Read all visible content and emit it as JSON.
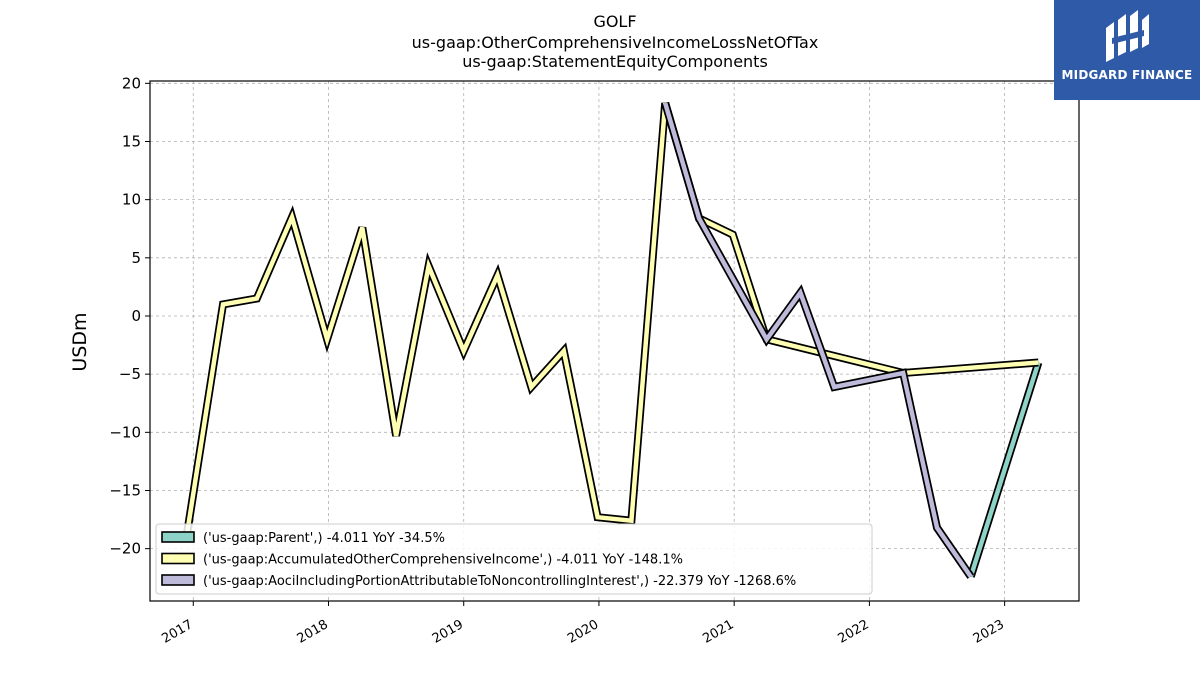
{
  "logo": {
    "text": "MIDGARD FINANCE"
  },
  "chart_data": {
    "type": "line",
    "title_lines": [
      "GOLF",
      "us-gaap:OtherComprehensiveIncomeLossNetOfTax",
      "us-gaap:StatementEquityComponents"
    ],
    "ylabel": "USDm",
    "xlabel": "",
    "ylim": [
      -24.5,
      20.2
    ],
    "xlim": [
      2016.68,
      2023.55
    ],
    "yticks": [
      20,
      15,
      10,
      5,
      0,
      -5,
      -10,
      -15,
      -20
    ],
    "ytick_labels": [
      "20",
      "15",
      "10",
      "5",
      "0",
      "−5",
      "−10",
      "−15",
      "−20"
    ],
    "xticks": [
      2017,
      2018,
      2019,
      2020,
      2021,
      2022,
      2023
    ],
    "xtick_labels": [
      "2017",
      "2018",
      "2019",
      "2020",
      "2021",
      "2022",
      "2023"
    ],
    "grid": true,
    "legend_position": "lower-left",
    "series": [
      {
        "name": "('us-gaap:Parent',) -4.011 YoY -34.5%",
        "color": "#8dd3c7",
        "points": [
          [
            2022.75,
            -22.4
          ],
          [
            2023.25,
            -4.0
          ]
        ]
      },
      {
        "name": "('us-gaap:AccumulatedOtherComprehensiveIncome',) -4.011 YoY -148.1%",
        "color": "#ffffb3",
        "points": [
          [
            2016.95,
            -19.0
          ],
          [
            2017.22,
            1.0
          ],
          [
            2017.47,
            1.5
          ],
          [
            2017.73,
            8.5
          ],
          [
            2017.99,
            -2.0
          ],
          [
            2018.25,
            7.6
          ],
          [
            2018.5,
            -10.3
          ],
          [
            2018.74,
            4.3
          ],
          [
            2019.0,
            -3.0
          ],
          [
            2019.25,
            3.5
          ],
          [
            2019.5,
            -6.1
          ],
          [
            2019.74,
            -3.0
          ],
          [
            2019.99,
            -17.3
          ],
          [
            2020.24,
            -17.6
          ],
          [
            2020.49,
            18.3
          ],
          [
            2020.74,
            8.4
          ],
          [
            2020.99,
            7.0
          ],
          [
            2021.24,
            -2.0
          ],
          [
            2022.25,
            -4.9
          ],
          [
            2023.25,
            -4.0
          ]
        ]
      },
      {
        "name": "('us-gaap:AociIncludingPortionAttributableToNoncontrollingInterest',) -22.379 YoY -1268.6%",
        "color": "#bebada",
        "points": [
          [
            2020.49,
            18.3
          ],
          [
            2020.74,
            8.4
          ],
          [
            2021.24,
            -2.0
          ],
          [
            2021.49,
            2.0
          ],
          [
            2021.74,
            -6.1
          ],
          [
            2022.25,
            -4.9
          ],
          [
            2022.5,
            -18.2
          ],
          [
            2022.75,
            -22.4
          ]
        ]
      }
    ]
  }
}
